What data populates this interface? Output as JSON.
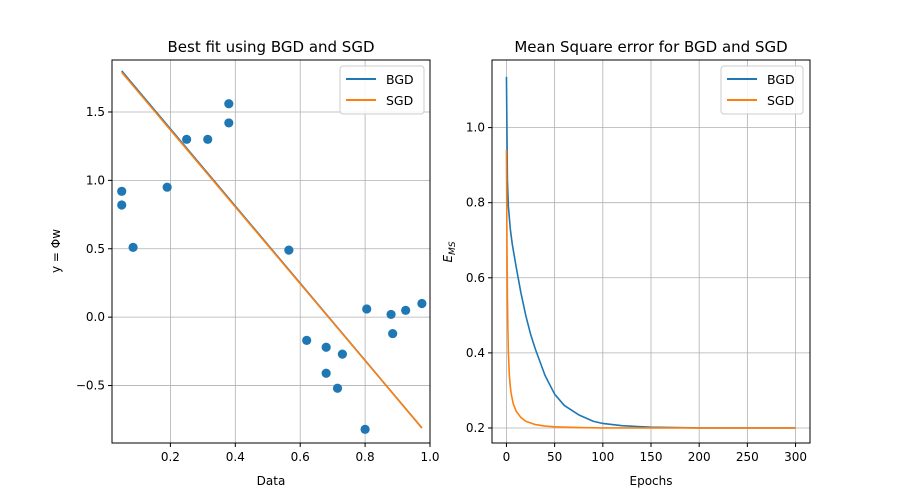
{
  "colors": {
    "bgd": "#1f77b4",
    "sgd": "#ff7f0e",
    "grid": "#b0b0b0"
  },
  "chart_data": [
    {
      "type": "scatter",
      "title": "Best fit using BGD and SGD",
      "xlabel": "Data",
      "ylabel": "y = Φw",
      "xlim": [
        0.02,
        1.0
      ],
      "ylim": [
        -0.92,
        1.88
      ],
      "xticks": [
        0.2,
        0.4,
        0.6,
        0.8,
        1.0
      ],
      "xtick_labels": [
        "0.2",
        "0.4",
        "0.6",
        "0.8",
        "1.0"
      ],
      "yticks": [
        -0.5,
        0.0,
        0.5,
        1.0,
        1.5
      ],
      "ytick_labels": [
        "−0.5",
        "0.0",
        "0.5",
        "1.0",
        "1.5"
      ],
      "grid": true,
      "legend": {
        "position": "upper right",
        "entries": [
          "BGD",
          "SGD"
        ]
      },
      "scatter": {
        "color": "#1f77b4",
        "points": [
          [
            0.05,
            0.92
          ],
          [
            0.05,
            0.82
          ],
          [
            0.085,
            0.51
          ],
          [
            0.19,
            0.95
          ],
          [
            0.25,
            1.3
          ],
          [
            0.315,
            1.3
          ],
          [
            0.38,
            1.56
          ],
          [
            0.38,
            1.42
          ],
          [
            0.565,
            0.49
          ],
          [
            0.62,
            -0.17
          ],
          [
            0.68,
            -0.22
          ],
          [
            0.68,
            -0.41
          ],
          [
            0.715,
            -0.52
          ],
          [
            0.73,
            -0.27
          ],
          [
            0.8,
            -0.82
          ],
          [
            0.805,
            0.06
          ],
          [
            0.88,
            0.02
          ],
          [
            0.885,
            -0.12
          ],
          [
            0.925,
            0.05
          ],
          [
            0.975,
            0.1
          ]
        ]
      },
      "series": [
        {
          "name": "BGD",
          "color": "#1f77b4",
          "x": [
            0.05,
            0.975
          ],
          "y": [
            1.8,
            -0.81
          ]
        },
        {
          "name": "SGD",
          "color": "#ff7f0e",
          "x": [
            0.05,
            0.975
          ],
          "y": [
            1.79,
            -0.81
          ]
        }
      ]
    },
    {
      "type": "line",
      "title": "Mean Square error for BGD and SGD",
      "xlabel": "Epochs",
      "ylabel": "E_MS",
      "xlim": [
        -15,
        315
      ],
      "ylim": [
        0.16,
        1.18
      ],
      "xticks": [
        0,
        50,
        100,
        150,
        200,
        250,
        300
      ],
      "xtick_labels": [
        "0",
        "50",
        "100",
        "150",
        "200",
        "250",
        "300"
      ],
      "yticks": [
        0.2,
        0.4,
        0.6,
        0.8,
        1.0
      ],
      "ytick_labels": [
        "0.2",
        "0.4",
        "0.6",
        "0.8",
        "1.0"
      ],
      "grid": true,
      "legend": {
        "position": "upper right",
        "entries": [
          "BGD",
          "SGD"
        ]
      },
      "series": [
        {
          "name": "BGD",
          "color": "#1f77b4",
          "x": [
            0,
            1,
            2,
            4,
            6,
            10,
            15,
            20,
            25,
            30,
            40,
            50,
            60,
            75,
            90,
            100,
            120,
            150,
            200,
            250,
            300
          ],
          "y": [
            1.135,
            0.86,
            0.79,
            0.73,
            0.69,
            0.63,
            0.56,
            0.5,
            0.45,
            0.41,
            0.34,
            0.29,
            0.26,
            0.235,
            0.218,
            0.212,
            0.206,
            0.202,
            0.2,
            0.2,
            0.2
          ]
        },
        {
          "name": "SGD",
          "color": "#ff7f0e",
          "x": [
            0,
            0.5,
            1,
            1.5,
            2,
            3,
            4,
            5,
            7,
            10,
            15,
            20,
            30,
            40,
            50,
            75,
            100,
            150,
            200,
            300
          ],
          "y": [
            0.94,
            0.7,
            0.55,
            0.46,
            0.4,
            0.34,
            0.31,
            0.29,
            0.265,
            0.245,
            0.228,
            0.218,
            0.209,
            0.205,
            0.203,
            0.201,
            0.2,
            0.2,
            0.2,
            0.2
          ]
        }
      ]
    }
  ]
}
